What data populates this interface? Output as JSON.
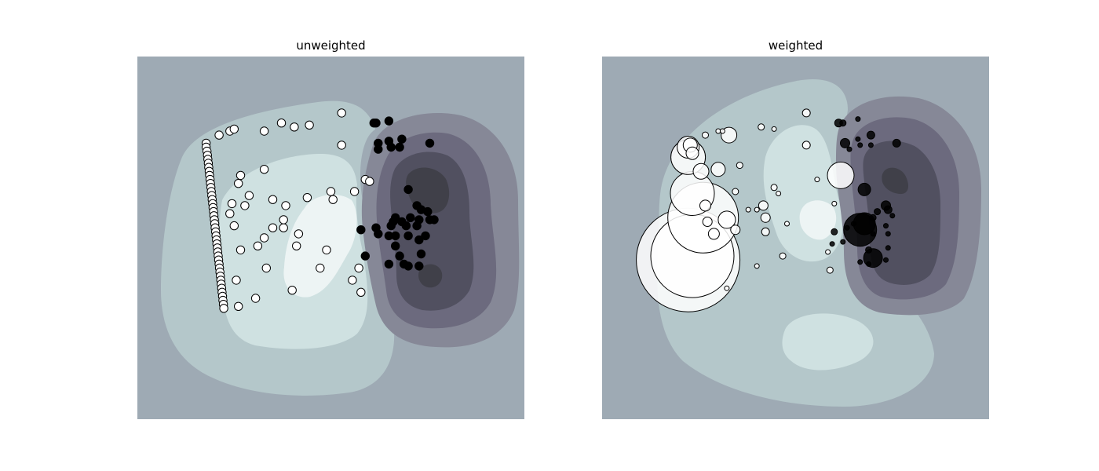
{
  "chart_data": [
    {
      "type": "scatter",
      "title": "unweighted",
      "xlabel": "",
      "ylabel": "",
      "xlim": [
        -4,
        5
      ],
      "ylim": [
        -4,
        5
      ],
      "axes_visible": false,
      "grid": false,
      "background": "decision-function filled contours, bone colormap",
      "colors": {
        "contour_levels": [
          "#9eaab4",
          "#b4c7ca",
          "#cfe1e1",
          "#edf4f4",
          "#868897",
          "#6c6a7e",
          "#515060",
          "#404049"
        ],
        "class_a": "#ffffff",
        "class_b": "#000000",
        "edge": "#000000"
      },
      "series": [
        {
          "class": "white",
          "points": [
            [
              -2.4,
              2.85
            ],
            [
              -2.4,
              2.75
            ],
            [
              -2.38,
              2.65
            ],
            [
              -2.37,
              2.55
            ],
            [
              -2.36,
              2.45
            ],
            [
              -2.35,
              2.35
            ],
            [
              -2.34,
              2.25
            ],
            [
              -2.33,
              2.15
            ],
            [
              -2.32,
              2.05
            ],
            [
              -2.31,
              1.95
            ],
            [
              -2.3,
              1.85
            ],
            [
              -2.29,
              1.75
            ],
            [
              -2.28,
              1.65
            ],
            [
              -2.27,
              1.55
            ],
            [
              -2.26,
              1.45
            ],
            [
              -2.25,
              1.35
            ],
            [
              -2.24,
              1.25
            ],
            [
              -2.23,
              1.15
            ],
            [
              -2.22,
              1.05
            ],
            [
              -2.21,
              0.95
            ],
            [
              -2.2,
              0.85
            ],
            [
              -2.19,
              0.75
            ],
            [
              -2.18,
              0.65
            ],
            [
              -2.17,
              0.55
            ],
            [
              -2.16,
              0.45
            ],
            [
              -2.15,
              0.35
            ],
            [
              -2.14,
              0.25
            ],
            [
              -2.13,
              0.15
            ],
            [
              -2.12,
              0.05
            ],
            [
              -2.11,
              -0.05
            ],
            [
              -2.1,
              -0.15
            ],
            [
              -2.09,
              -0.25
            ],
            [
              -2.08,
              -0.35
            ],
            [
              -2.07,
              -0.45
            ],
            [
              -2.06,
              -0.55
            ],
            [
              -2.05,
              -0.65
            ],
            [
              -2.04,
              -0.75
            ],
            [
              -2.03,
              -0.85
            ],
            [
              -2.02,
              -0.95
            ],
            [
              -2.01,
              -1.05
            ],
            [
              -2.0,
              -1.15
            ],
            [
              -1.99,
              -1.25
            ],
            [
              -2.1,
              3.05
            ],
            [
              -1.85,
              3.15
            ],
            [
              -1.75,
              3.2
            ],
            [
              -1.05,
              3.15
            ],
            [
              -0.65,
              3.35
            ],
            [
              -0.35,
              3.25
            ],
            [
              0.0,
              3.3
            ],
            [
              -1.05,
              2.2
            ],
            [
              -1.6,
              2.05
            ],
            [
              -1.65,
              1.85
            ],
            [
              -1.4,
              1.55
            ],
            [
              -1.8,
              1.35
            ],
            [
              -1.5,
              1.3
            ],
            [
              -0.85,
              1.45
            ],
            [
              -1.85,
              1.1
            ],
            [
              -1.75,
              0.8
            ],
            [
              -1.6,
              0.2
            ],
            [
              -1.2,
              0.3
            ],
            [
              -1.05,
              0.5
            ],
            [
              -0.85,
              0.75
            ],
            [
              -0.6,
              0.75
            ],
            [
              -0.55,
              1.3
            ],
            [
              -0.6,
              0.95
            ],
            [
              -0.25,
              0.6
            ],
            [
              -0.05,
              1.5
            ],
            [
              -0.3,
              0.3
            ],
            [
              0.4,
              0.2
            ],
            [
              0.25,
              -0.25
            ],
            [
              -1.0,
              -0.25
            ],
            [
              -1.7,
              -0.55
            ],
            [
              -1.25,
              -1.0
            ],
            [
              -0.4,
              -0.8
            ],
            [
              -1.65,
              -1.2
            ],
            [
              0.55,
              1.45
            ],
            [
              0.75,
              3.6
            ],
            [
              0.75,
              2.8
            ],
            [
              1.05,
              1.65
            ],
            [
              1.3,
              1.95
            ],
            [
              1.4,
              1.9
            ],
            [
              1.15,
              -0.25
            ],
            [
              1.0,
              -0.55
            ],
            [
              1.2,
              -0.85
            ],
            [
              0.5,
              1.65
            ]
          ]
        },
        {
          "class": "black",
          "points": [
            [
              1.5,
              3.35
            ],
            [
              1.55,
              3.35
            ],
            [
              1.85,
              3.4
            ],
            [
              1.6,
              2.85
            ],
            [
              1.6,
              2.7
            ],
            [
              1.85,
              2.9
            ],
            [
              1.9,
              2.75
            ],
            [
              2.1,
              2.75
            ],
            [
              2.15,
              2.95
            ],
            [
              2.8,
              2.85
            ],
            [
              2.3,
              1.7
            ],
            [
              2.5,
              1.3
            ],
            [
              2.6,
              1.2
            ],
            [
              2.75,
              1.15
            ],
            [
              2.8,
              0.95
            ],
            [
              2.55,
              0.95
            ],
            [
              2.5,
              0.8
            ],
            [
              2.0,
              1.0
            ],
            [
              1.95,
              0.9
            ],
            [
              1.85,
              0.55
            ],
            [
              1.55,
              0.75
            ],
            [
              1.2,
              0.7
            ],
            [
              2.3,
              0.55
            ],
            [
              2.55,
              0.45
            ],
            [
              2.0,
              0.3
            ],
            [
              2.1,
              0.05
            ],
            [
              1.85,
              -0.15
            ],
            [
              2.2,
              -0.15
            ],
            [
              2.6,
              0.1
            ],
            [
              2.55,
              -0.2
            ],
            [
              2.3,
              -0.2
            ],
            [
              1.3,
              0.05
            ],
            [
              1.9,
              0.8
            ],
            [
              2.15,
              0.9
            ],
            [
              2.35,
              1.0
            ],
            [
              2.9,
              0.95
            ],
            [
              2.7,
              0.55
            ],
            [
              1.6,
              0.6
            ],
            [
              2.0,
              0.55
            ],
            [
              2.25,
              0.8
            ]
          ]
        }
      ]
    },
    {
      "type": "scatter",
      "title": "weighted",
      "xlabel": "",
      "ylabel": "",
      "xlim": [
        -4,
        5
      ],
      "ylim": [
        -4,
        5
      ],
      "axes_visible": false,
      "grid": false,
      "marker_size_encodes": "sample_weight",
      "colors": {
        "contour_levels": [
          "#9eaab4",
          "#b4c7ca",
          "#cfe1e1",
          "#edf4f4",
          "#868897",
          "#6c6a7e",
          "#515060",
          "#404049"
        ],
        "class_a": "#ffffff",
        "class_b": "#000000",
        "edge": "#000000"
      },
      "series": [
        {
          "class": "white",
          "points": [
            [
              -2.0,
              -0.05,
              66
            ],
            [
              -1.9,
              0.05,
              53
            ],
            [
              -1.65,
              1.0,
              45
            ],
            [
              -1.9,
              1.6,
              28
            ],
            [
              -2.0,
              2.5,
              22
            ],
            [
              -2.0,
              2.75,
              14
            ],
            [
              -1.95,
              2.8,
              9
            ],
            [
              -1.9,
              2.6,
              8
            ],
            [
              -1.7,
              2.15,
              10
            ],
            [
              -1.6,
              1.3,
              7
            ],
            [
              -1.55,
              0.9,
              6
            ],
            [
              -1.4,
              0.6,
              7
            ],
            [
              -1.1,
              0.95,
              11
            ],
            [
              -0.9,
              0.7,
              6
            ],
            [
              -1.3,
              2.2,
              9
            ],
            [
              -1.05,
              3.05,
              10
            ],
            [
              -1.6,
              3.05,
              4
            ],
            [
              -1.3,
              3.15,
              3
            ],
            [
              -1.2,
              3.15,
              3
            ],
            [
              -0.3,
              3.25,
              4
            ],
            [
              0.0,
              3.2,
              3
            ],
            [
              -0.8,
              2.3,
              4
            ],
            [
              -0.9,
              1.65,
              4
            ],
            [
              -0.6,
              1.2,
              3
            ],
            [
              -0.4,
              1.2,
              3
            ],
            [
              -0.2,
              0.65,
              5
            ],
            [
              -0.25,
              1.3,
              6
            ],
            [
              -0.2,
              1.0,
              6
            ],
            [
              0.0,
              1.75,
              4
            ],
            [
              0.1,
              1.6,
              3
            ],
            [
              0.3,
              0.85,
              3
            ],
            [
              0.2,
              0.05,
              4
            ],
            [
              -0.4,
              -0.2,
              3
            ],
            [
              -1.1,
              -0.75,
              3
            ],
            [
              0.75,
              3.6,
              5
            ],
            [
              0.75,
              2.8,
              5
            ],
            [
              1.0,
              1.95,
              3
            ],
            [
              1.55,
              2.05,
              17
            ],
            [
              1.4,
              1.35,
              3
            ],
            [
              1.3,
              -0.3,
              4
            ],
            [
              1.25,
              0.15,
              3
            ]
          ]
        },
        {
          "class": "black",
          "points": [
            [
              1.5,
              3.35,
              5
            ],
            [
              1.6,
              3.35,
              4
            ],
            [
              1.95,
              3.45,
              3
            ],
            [
              1.65,
              2.85,
              6
            ],
            [
              1.75,
              2.7,
              3
            ],
            [
              1.95,
              2.95,
              3
            ],
            [
              2.0,
              2.8,
              3
            ],
            [
              2.25,
              2.8,
              3
            ],
            [
              2.25,
              3.05,
              5
            ],
            [
              2.85,
              2.85,
              5
            ],
            [
              2.1,
              1.7,
              8
            ],
            [
              2.6,
              1.3,
              6
            ],
            [
              2.65,
              1.2,
              5
            ],
            [
              2.75,
              1.05,
              3
            ],
            [
              2.4,
              1.15,
              4
            ],
            [
              2.3,
              1.0,
              4
            ],
            [
              2.1,
              0.85,
              14
            ],
            [
              2.0,
              0.7,
              21
            ],
            [
              2.6,
              0.8,
              3
            ],
            [
              1.85,
              0.85,
              3
            ],
            [
              1.7,
              0.75,
              3
            ],
            [
              1.4,
              0.65,
              4
            ],
            [
              1.35,
              0.35,
              3
            ],
            [
              1.6,
              0.4,
              3
            ],
            [
              2.3,
              0.6,
              3
            ],
            [
              2.65,
              0.6,
              3
            ],
            [
              2.2,
              0.2,
              4
            ],
            [
              2.3,
              0.0,
              12
            ],
            [
              2.0,
              -0.1,
              3
            ],
            [
              2.2,
              -0.15,
              3
            ],
            [
              2.65,
              0.25,
              3
            ],
            [
              2.6,
              -0.05,
              3
            ]
          ]
        }
      ]
    }
  ]
}
